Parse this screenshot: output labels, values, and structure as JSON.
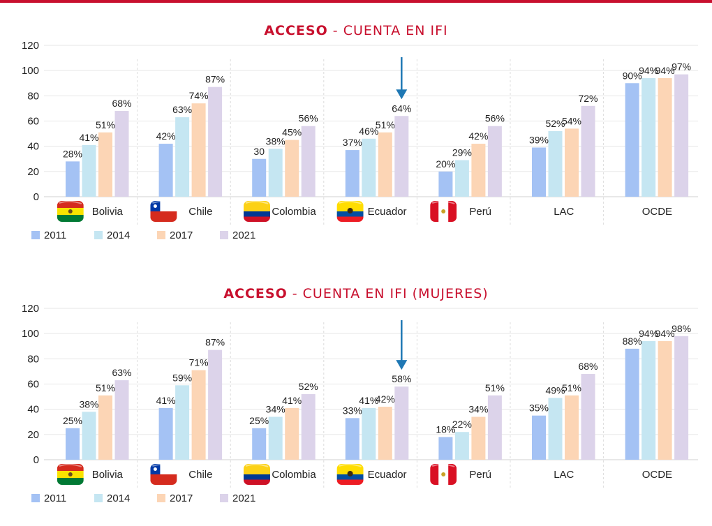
{
  "colors": {
    "accent": "#c8102e",
    "series": [
      "#a4c2f4",
      "#c5e6f2",
      "#fcd5b5",
      "#dcd3ea"
    ],
    "arrow": "#1f78b4"
  },
  "chart_data": [
    {
      "type": "bar",
      "title_strong": "ACCESO",
      "title_rest": " - CUENTA EN IFI",
      "categories": [
        "Bolivia",
        "Chile",
        "Colombia",
        "Ecuador",
        "Perú",
        "LAC",
        "OCDE"
      ],
      "flags": [
        "bolivia-flag-icon",
        "chile-flag-icon",
        "colombia-flag-icon",
        "ecuador-flag-icon",
        "peru-flag-icon",
        null,
        null
      ],
      "ylim": [
        0,
        120
      ],
      "yticks": [
        "0",
        "20",
        "40",
        "60",
        "80",
        "100",
        "120"
      ],
      "grid": true,
      "legend": "bottom-left",
      "arrow_at": "Ecuador",
      "series": [
        {
          "name": "2011",
          "values": [
            28,
            42,
            30,
            37,
            20,
            39,
            90
          ],
          "labels": [
            "28%",
            "42%",
            "30",
            "37%",
            "20%",
            "39%",
            "90%"
          ]
        },
        {
          "name": "2014",
          "values": [
            41,
            63,
            38,
            46,
            29,
            52,
            94
          ],
          "labels": [
            "41%",
            "63%",
            "38%",
            "46%",
            "29%",
            "52%",
            "94%"
          ]
        },
        {
          "name": "2017",
          "values": [
            51,
            74,
            45,
            51,
            42,
            54,
            94
          ],
          "labels": [
            "51%",
            "74%",
            "45%",
            "51%",
            "42%",
            "54%",
            "94%"
          ]
        },
        {
          "name": "2021",
          "values": [
            68,
            87,
            56,
            64,
            56,
            72,
            97
          ],
          "labels": [
            "68%",
            "87%",
            "56%",
            "64%",
            "56%",
            "72%",
            "97%"
          ]
        }
      ]
    },
    {
      "type": "bar",
      "title_strong": "ACCESO",
      "title_rest": " - CUENTA EN IFI (MUJERES)",
      "categories": [
        "Bolivia",
        "Chile",
        "Colombia",
        "Ecuador",
        "Perú",
        "LAC",
        "OCDE"
      ],
      "flags": [
        "bolivia-flag-icon",
        "chile-flag-icon",
        "colombia-flag-icon",
        "ecuador-flag-icon",
        "peru-flag-icon",
        null,
        null
      ],
      "ylim": [
        0,
        120
      ],
      "yticks": [
        "0",
        "20",
        "40",
        "60",
        "80",
        "100",
        "120"
      ],
      "grid": true,
      "legend": "bottom-left",
      "arrow_at": "Ecuador",
      "series": [
        {
          "name": "2011",
          "values": [
            25,
            41,
            25,
            33,
            18,
            35,
            88
          ],
          "labels": [
            "25%",
            "41%",
            "25%",
            "33%",
            "18%",
            "35%",
            "88%"
          ]
        },
        {
          "name": "2014",
          "values": [
            38,
            59,
            34,
            41,
            22,
            49,
            94
          ],
          "labels": [
            "38%",
            "59%",
            "34%",
            "41%",
            "22%",
            "49%",
            "94%"
          ]
        },
        {
          "name": "2017",
          "values": [
            51,
            71,
            41,
            42,
            34,
            51,
            94
          ],
          "labels": [
            "51%",
            "71%",
            "41%",
            "42%",
            "34%",
            "51%",
            "94%"
          ]
        },
        {
          "name": "2021",
          "values": [
            63,
            87,
            52,
            58,
            51,
            68,
            98
          ],
          "labels": [
            "63%",
            "87%",
            "52%",
            "58%",
            "51%",
            "68%",
            "98%"
          ]
        }
      ]
    }
  ]
}
